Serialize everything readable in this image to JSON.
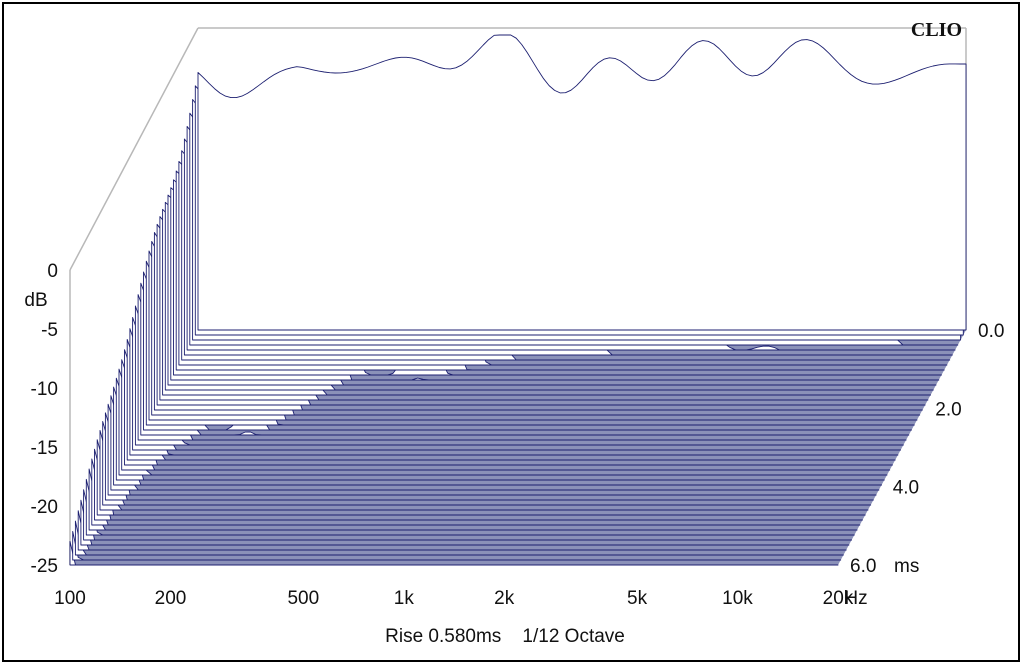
{
  "brand": "CLIO",
  "footer": "Rise 0.580ms    1/12 Octave",
  "chart_data": {
    "type": "area",
    "chart_kind": "cumulative spectral decay (waterfall)",
    "x_axis": {
      "unit": "Hz",
      "scale": "log",
      "range": [
        100,
        20000
      ],
      "ticks": [
        100,
        200,
        500,
        1000,
        2000,
        5000,
        10000,
        20000
      ],
      "tick_labels": [
        "100",
        "200",
        "500",
        "1k",
        "2k",
        "5k",
        "10k",
        "20k"
      ]
    },
    "y_axis": {
      "unit": "dB",
      "range": [
        -25,
        0
      ],
      "ticks": [
        0,
        -5,
        -10,
        -15,
        -20,
        -25
      ],
      "tick_labels": [
        "0",
        "-5",
        "-10",
        "-15",
        "-20",
        "-25"
      ]
    },
    "z_axis": {
      "unit": "ms",
      "range": [
        0,
        6
      ],
      "ticks": [
        0,
        2,
        4,
        6
      ],
      "tick_labels": [
        "0.0",
        "2.0",
        "4.0",
        "6.0"
      ]
    },
    "rise_ms": 0.58,
    "smoothing": "1/12 Octave",
    "slice_count": 48,
    "colors": {
      "trace": "#1c1f70",
      "floor": "#8b91b9",
      "frame": "#b8b8b8"
    }
  }
}
